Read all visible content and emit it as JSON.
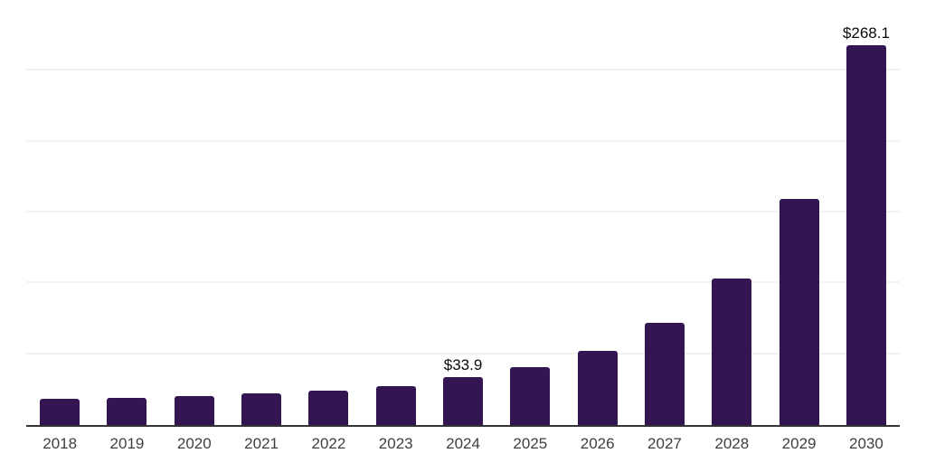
{
  "chart_data": {
    "type": "bar",
    "title": "",
    "xlabel": "",
    "ylabel": "",
    "categories": [
      "2018",
      "2019",
      "2020",
      "2021",
      "2022",
      "2023",
      "2024",
      "2025",
      "2026",
      "2027",
      "2028",
      "2029",
      "2030"
    ],
    "values": [
      18.4,
      19.0,
      20.6,
      22.4,
      24.5,
      27.7,
      33.9,
      41.1,
      52.4,
      71.9,
      103.3,
      159.7,
      268.1
    ],
    "data_labels": {
      "2024": "$33.9",
      "2030": "$268.1"
    },
    "ylim": [
      0,
      300
    ],
    "grid_step": 50,
    "grid": true,
    "legend": false,
    "bar_color": "#321551",
    "grid_color": "#f2f2f2",
    "axis_color": "#333333",
    "tick_label_color": "#3f3f3f",
    "data_label_color": "#0a0a0a",
    "background_color": "#ffffff"
  }
}
